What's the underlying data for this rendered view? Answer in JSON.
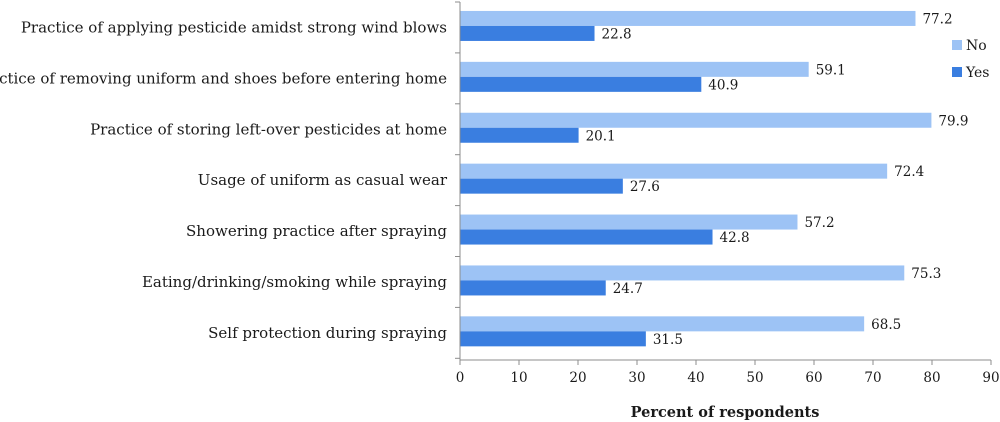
{
  "chart_data": {
    "type": "bar",
    "orientation": "horizontal",
    "categories": [
      "Practice of applying pesticide amidst strong wind blows",
      "Practice of removing uniform and shoes before entering home",
      "Practice of storing left-over pesticides at home",
      "Usage of uniform as casual wear",
      "Showering practice after spraying",
      "Eating/drinking/smoking while spraying",
      "Self protection during spraying"
    ],
    "series": [
      {
        "name": "No",
        "color": "#9dc3f5",
        "values": [
          77.2,
          59.1,
          79.9,
          72.4,
          57.2,
          75.3,
          68.5
        ]
      },
      {
        "name": "Yes",
        "color": "#3a7ee0",
        "values": [
          22.8,
          40.9,
          20.1,
          27.6,
          42.8,
          24.7,
          31.5
        ]
      }
    ],
    "value_labels": [
      [
        "77.2",
        "59.1",
        "79.9",
        "72.4",
        "57.2",
        "75.3",
        "68.5"
      ],
      [
        "22.8",
        "40.9",
        "20.1",
        "27.6",
        "42.8",
        "24.7",
        "31.5"
      ]
    ],
    "xlabel": "Percent of respondents",
    "ylabel": "",
    "title": "",
    "xlim": [
      0,
      90
    ],
    "xticks": [
      0,
      10,
      20,
      30,
      40,
      50,
      60,
      70,
      80,
      90
    ],
    "xtick_labels": [
      "0",
      "10",
      "20",
      "30",
      "40",
      "50",
      "60",
      "70",
      "80",
      "90"
    ],
    "grid": false,
    "legend_position": "right"
  }
}
